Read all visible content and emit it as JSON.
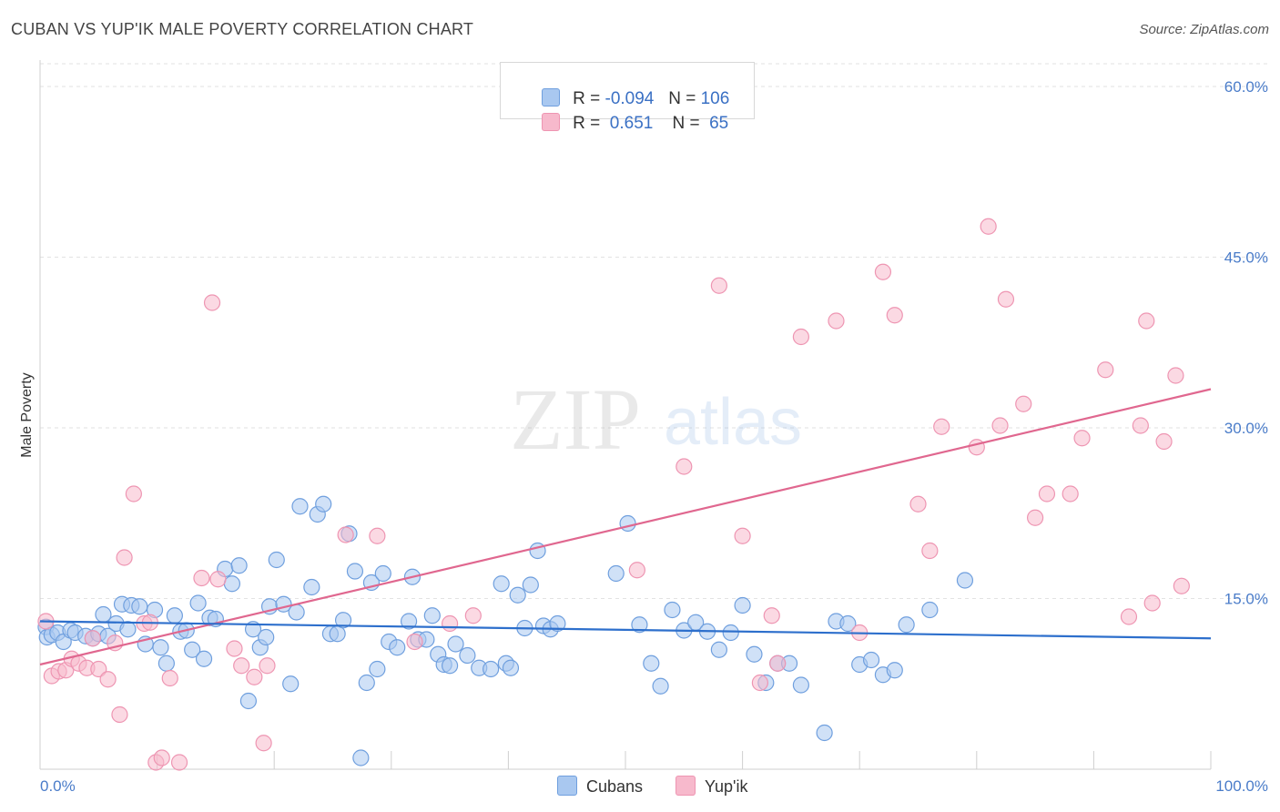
{
  "title": "CUBAN VS YUP'IK MALE POVERTY CORRELATION CHART",
  "source": "Source: ZipAtlas.com",
  "watermark": {
    "zip": "ZIP",
    "atlas": "atlas"
  },
  "legend": {
    "rows": [
      {
        "r_label": "R = ",
        "r_value": "-0.094",
        "n_label": "N = ",
        "n_value": "106",
        "color": "#a9c8f0"
      },
      {
        "r_label": "R = ",
        "r_value": " 0.651",
        "n_label": "N = ",
        "n_value": " 65",
        "color": "#f7b9cc"
      }
    ]
  },
  "bottom_legend": {
    "cubans": "Cubans",
    "yupik": "Yup'ik"
  },
  "chart_data": {
    "type": "scatter",
    "title": "CUBAN VS YUP'IK MALE POVERTY CORRELATION CHART",
    "xlabel": "",
    "ylabel": "Male Poverty",
    "xlim": [
      0,
      100
    ],
    "ylim": [
      0,
      62
    ],
    "x_tick_labels": [
      "0.0%",
      "100.0%"
    ],
    "y_ticks": [
      15,
      30,
      45,
      60
    ],
    "y_tick_labels": [
      "15.0%",
      "30.0%",
      "45.0%",
      "60.0%"
    ],
    "grid": true,
    "legend_position": "top-center",
    "colors": {
      "cubans_fill": "#a9c8f0",
      "cubans_stroke": "#6f9fde",
      "cubans_line": "#2d6fcc",
      "yupik_fill": "#f7b9cc",
      "yupik_stroke": "#ee95b2",
      "yupik_line": "#e0678f"
    },
    "series": [
      {
        "name": "Cubans",
        "trend": {
          "x": [
            0,
            100
          ],
          "y": [
            13.0,
            11.5
          ]
        },
        "points": [
          [
            0.5,
            12.5
          ],
          [
            0.6,
            11.6
          ],
          [
            1.0,
            11.8
          ],
          [
            1.5,
            12.0
          ],
          [
            2.0,
            11.2
          ],
          [
            2.6,
            12.2
          ],
          [
            3.0,
            12.0
          ],
          [
            3.9,
            11.7
          ],
          [
            4.5,
            11.5
          ],
          [
            5.0,
            11.9
          ],
          [
            5.4,
            13.6
          ],
          [
            5.8,
            11.7
          ],
          [
            6.5,
            12.8
          ],
          [
            7.0,
            14.5
          ],
          [
            7.5,
            12.3
          ],
          [
            7.8,
            14.4
          ],
          [
            8.5,
            14.3
          ],
          [
            9.0,
            11.0
          ],
          [
            9.8,
            14.0
          ],
          [
            10.3,
            10.7
          ],
          [
            10.8,
            9.3
          ],
          [
            11.5,
            13.5
          ],
          [
            12.0,
            12.1
          ],
          [
            12.5,
            12.2
          ],
          [
            13.0,
            10.5
          ],
          [
            13.5,
            14.6
          ],
          [
            14.0,
            9.7
          ],
          [
            14.5,
            13.3
          ],
          [
            15.0,
            13.2
          ],
          [
            15.8,
            17.6
          ],
          [
            16.4,
            16.3
          ],
          [
            17.0,
            17.9
          ],
          [
            17.8,
            6.0
          ],
          [
            18.2,
            12.3
          ],
          [
            18.8,
            10.7
          ],
          [
            19.3,
            11.6
          ],
          [
            19.6,
            14.3
          ],
          [
            20.2,
            18.4
          ],
          [
            20.8,
            14.5
          ],
          [
            21.4,
            7.5
          ],
          [
            21.9,
            13.8
          ],
          [
            22.2,
            23.1
          ],
          [
            23.2,
            16.0
          ],
          [
            23.7,
            22.4
          ],
          [
            24.2,
            23.3
          ],
          [
            24.8,
            11.9
          ],
          [
            25.4,
            11.9
          ],
          [
            25.9,
            13.1
          ],
          [
            26.4,
            20.7
          ],
          [
            26.9,
            17.4
          ],
          [
            27.4,
            1.0
          ],
          [
            27.9,
            7.6
          ],
          [
            28.3,
            16.4
          ],
          [
            28.8,
            8.8
          ],
          [
            29.3,
            17.2
          ],
          [
            29.8,
            11.2
          ],
          [
            30.5,
            10.7
          ],
          [
            31.5,
            13.0
          ],
          [
            31.8,
            16.9
          ],
          [
            32.3,
            11.4
          ],
          [
            33.0,
            11.4
          ],
          [
            33.5,
            13.5
          ],
          [
            34.0,
            10.1
          ],
          [
            34.5,
            9.2
          ],
          [
            35.0,
            9.1
          ],
          [
            35.5,
            11.0
          ],
          [
            36.5,
            10.0
          ],
          [
            37.5,
            8.9
          ],
          [
            38.5,
            8.8
          ],
          [
            39.4,
            16.3
          ],
          [
            39.8,
            9.3
          ],
          [
            40.2,
            8.9
          ],
          [
            40.8,
            15.3
          ],
          [
            41.4,
            12.4
          ],
          [
            41.9,
            16.2
          ],
          [
            42.5,
            19.2
          ],
          [
            43.0,
            12.6
          ],
          [
            43.6,
            12.3
          ],
          [
            44.2,
            12.8
          ],
          [
            49.2,
            17.2
          ],
          [
            50.2,
            21.6
          ],
          [
            51.2,
            12.7
          ],
          [
            52.2,
            9.3
          ],
          [
            53.0,
            7.3
          ],
          [
            54.0,
            14.0
          ],
          [
            55.0,
            12.2
          ],
          [
            56.0,
            12.9
          ],
          [
            57.0,
            12.1
          ],
          [
            58.0,
            10.5
          ],
          [
            59.0,
            12.0
          ],
          [
            60.0,
            14.4
          ],
          [
            61.0,
            10.1
          ],
          [
            62.0,
            7.6
          ],
          [
            63.0,
            9.3
          ],
          [
            64.0,
            9.3
          ],
          [
            65.0,
            7.4
          ],
          [
            67.0,
            3.2
          ],
          [
            68.0,
            13.0
          ],
          [
            69.0,
            12.8
          ],
          [
            70.0,
            9.2
          ],
          [
            71.0,
            9.6
          ],
          [
            72.0,
            8.3
          ],
          [
            73.0,
            8.7
          ],
          [
            74.0,
            12.7
          ],
          [
            76.0,
            14.0
          ],
          [
            79.0,
            16.6
          ]
        ]
      },
      {
        "name": "Yup'ik",
        "trend": {
          "x": [
            0,
            100
          ],
          "y": [
            9.2,
            33.4
          ]
        },
        "points": [
          [
            0.5,
            13.0
          ],
          [
            1.0,
            8.2
          ],
          [
            1.6,
            8.6
          ],
          [
            2.2,
            8.7
          ],
          [
            2.7,
            9.7
          ],
          [
            3.3,
            9.3
          ],
          [
            4.0,
            8.9
          ],
          [
            4.5,
            11.5
          ],
          [
            5.0,
            8.8
          ],
          [
            5.8,
            7.9
          ],
          [
            6.4,
            11.1
          ],
          [
            6.8,
            4.8
          ],
          [
            7.2,
            18.6
          ],
          [
            8.0,
            24.2
          ],
          [
            8.9,
            12.8
          ],
          [
            9.4,
            12.9
          ],
          [
            9.9,
            0.6
          ],
          [
            10.4,
            1.0
          ],
          [
            11.1,
            8.0
          ],
          [
            11.9,
            0.6
          ],
          [
            13.8,
            16.8
          ],
          [
            14.7,
            41.0
          ],
          [
            15.2,
            16.7
          ],
          [
            16.6,
            10.6
          ],
          [
            17.2,
            9.1
          ],
          [
            18.3,
            8.1
          ],
          [
            19.1,
            2.3
          ],
          [
            19.4,
            9.1
          ],
          [
            26.1,
            20.6
          ],
          [
            28.8,
            20.5
          ],
          [
            32.0,
            11.2
          ],
          [
            35.0,
            12.8
          ],
          [
            37.0,
            13.5
          ],
          [
            51.0,
            17.5
          ],
          [
            55.0,
            26.6
          ],
          [
            58.0,
            42.5
          ],
          [
            60.0,
            20.5
          ],
          [
            61.5,
            7.6
          ],
          [
            62.5,
            13.5
          ],
          [
            63.0,
            9.3
          ],
          [
            65.0,
            38.0
          ],
          [
            68.0,
            39.4
          ],
          [
            70.0,
            12.0
          ],
          [
            72.0,
            43.7
          ],
          [
            73.0,
            39.9
          ],
          [
            75.0,
            23.3
          ],
          [
            76.0,
            19.2
          ],
          [
            77.0,
            30.1
          ],
          [
            80.0,
            28.3
          ],
          [
            81.0,
            47.7
          ],
          [
            82.0,
            30.2
          ],
          [
            82.5,
            41.3
          ],
          [
            84.0,
            32.1
          ],
          [
            85.0,
            22.1
          ],
          [
            86.0,
            24.2
          ],
          [
            88.0,
            24.2
          ],
          [
            89.0,
            29.1
          ],
          [
            91.0,
            35.1
          ],
          [
            93.0,
            13.4
          ],
          [
            94.0,
            30.2
          ],
          [
            94.5,
            39.4
          ],
          [
            95.0,
            14.6
          ],
          [
            96.0,
            28.8
          ],
          [
            97.0,
            34.6
          ],
          [
            97.5,
            16.1
          ]
        ]
      }
    ]
  }
}
